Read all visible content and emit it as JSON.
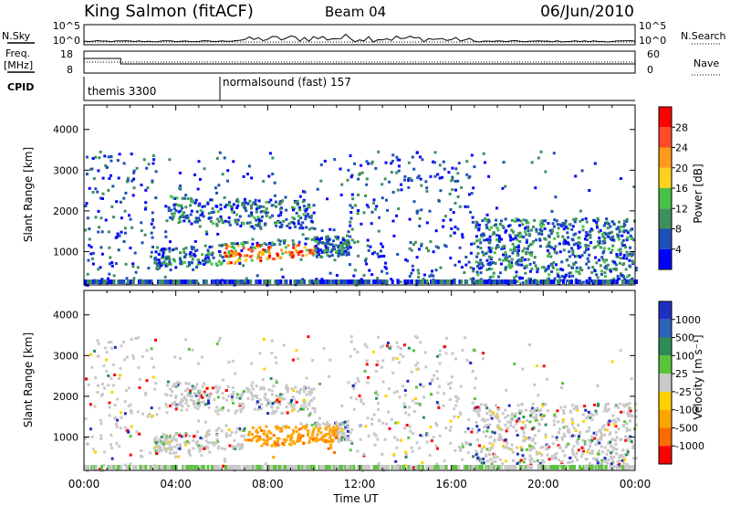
{
  "header": {
    "station": "King Salmon (fitACF)",
    "beam": "Beam 04",
    "date": "06/Jun/2010"
  },
  "noise_panel": {
    "left_label": "N.Sky",
    "right_label": "N.Search",
    "tick_top": "10^5",
    "tick_bottom": "10^0"
  },
  "freq_panel": {
    "left_label_line1": "Freq.",
    "left_label_line2": "[MHz]",
    "right_label": "Nave",
    "left_ticks": [
      "18",
      "8"
    ],
    "right_ticks": [
      "60",
      "0"
    ]
  },
  "cpid_panel": {
    "label": "CPID",
    "programs": [
      "themis 3300",
      "normalsound (fast) 157"
    ]
  },
  "x_axis": {
    "title": "Time UT",
    "ticks": [
      "00:00",
      "04:00",
      "08:00",
      "12:00",
      "16:00",
      "20:00",
      "00:00"
    ]
  },
  "chart_data": [
    {
      "type": "heatmap",
      "title": "",
      "xlabel": "Time UT",
      "ylabel": "Slant Range [km]",
      "x_range_hours": [
        0,
        24
      ],
      "ylim": [
        180,
        4600
      ],
      "y_ticks": [
        1000,
        2000,
        3000,
        4000
      ],
      "colorbar": {
        "label": "Power [dB]",
        "levels": [
          4,
          8,
          12,
          16,
          20,
          24,
          28
        ],
        "colors": [
          "#0000ff",
          "#1d4fb8",
          "#3f8f5f",
          "#47c247",
          "#ffd21e",
          "#ff9a1a",
          "#ff4a2a",
          "#ff0000"
        ]
      }
    },
    {
      "type": "heatmap",
      "title": "",
      "xlabel": "Time UT",
      "ylabel": "Slant Range [km]",
      "x_range_hours": [
        0,
        24
      ],
      "ylim": [
        180,
        4600
      ],
      "y_ticks": [
        1000,
        2000,
        3000,
        4000
      ],
      "colorbar": {
        "label": "Velocity [m s⁻¹]",
        "levels": [
          1000,
          500,
          100,
          25,
          -25,
          -100,
          -500,
          -1000
        ],
        "colors": [
          "#1e2fbf",
          "#2c62b8",
          "#2e8b57",
          "#59c43a",
          "#c8c8c8",
          "#ffd200",
          "#ffa500",
          "#ff6a00",
          "#ff0000"
        ]
      }
    }
  ]
}
